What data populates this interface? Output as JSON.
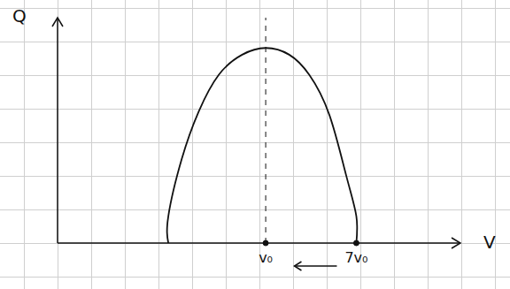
{
  "chart_data": {
    "type": "line",
    "x_label": "V",
    "y_label": "Q",
    "x": [
      3.3,
      3.3,
      3.7,
      4.2,
      4.8,
      5.5,
      6.2,
      6.9,
      7.5,
      8.1,
      8.6,
      8.9,
      8.9
    ],
    "values": [
      0,
      0.8,
      2.5,
      3.9,
      5.0,
      5.6,
      5.8,
      5.6,
      5.0,
      3.8,
      2.0,
      0.8,
      0
    ],
    "color": "#111111",
    "xlim": [
      0,
      12
    ],
    "ylim": [
      0,
      6.7
    ],
    "xticks": [
      {
        "value": 6.2,
        "label": "v₀"
      },
      {
        "value": 8.9,
        "label": "7v₀"
      }
    ],
    "tick_labels": "x",
    "grid": true,
    "line_style": "solid"
  }
}
